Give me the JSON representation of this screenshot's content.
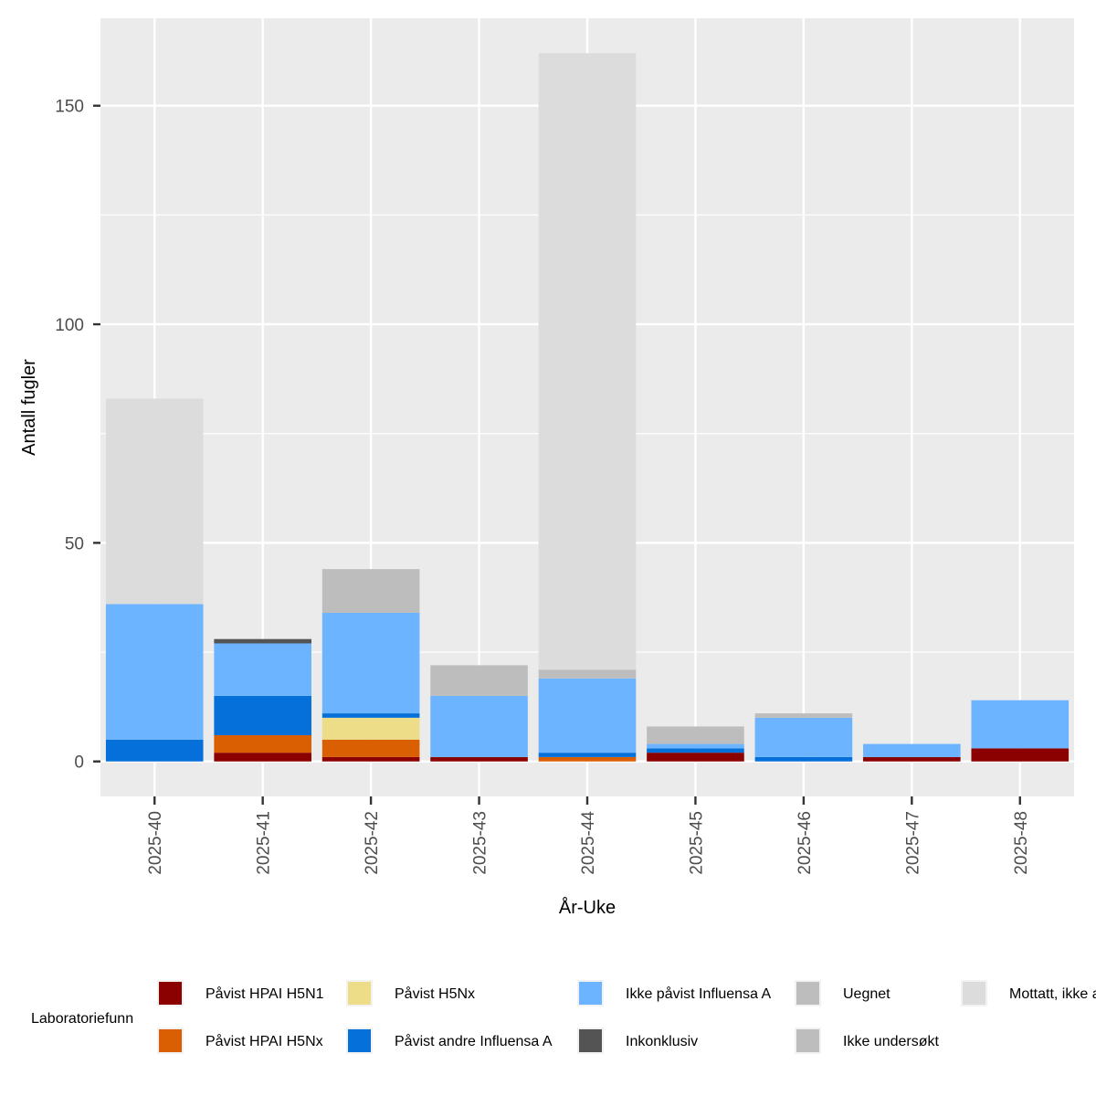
{
  "chart_data": {
    "type": "bar",
    "stacked": true,
    "title": "",
    "xlabel": "År-Uke",
    "ylabel": "Antall fugler",
    "ylim": [
      -8,
      170
    ],
    "yticks": [
      0,
      50,
      100,
      150
    ],
    "categories": [
      "2025-40",
      "2025-41",
      "2025-42",
      "2025-43",
      "2025-44",
      "2025-45",
      "2025-46",
      "2025-47",
      "2025-48"
    ],
    "legend_title": "Laboratoriefunn",
    "series": [
      {
        "name": "Påvist HPAI H5N1",
        "color": "#8b0000",
        "values": [
          0,
          2,
          1,
          1,
          0,
          2,
          0,
          1,
          3
        ]
      },
      {
        "name": "Påvist HPAI H5Nx",
        "color": "#d95f02",
        "values": [
          0,
          4,
          4,
          0,
          1,
          0,
          0,
          0,
          0
        ]
      },
      {
        "name": "Påvist H5Nx",
        "color": "#eedd88",
        "values": [
          0,
          0,
          5,
          0,
          0,
          0,
          0,
          0,
          0
        ]
      },
      {
        "name": "Påvist andre Influensa A",
        "color": "#0570d9",
        "values": [
          5,
          9,
          1,
          0,
          1,
          1,
          1,
          0,
          0
        ]
      },
      {
        "name": "Ikke påvist Influensa A",
        "color": "#6cb4ff",
        "values": [
          31,
          12,
          23,
          14,
          17,
          1,
          9,
          3,
          11
        ]
      },
      {
        "name": "Inkonklusiv",
        "color": "#545454",
        "values": [
          0,
          1,
          0,
          0,
          0,
          0,
          0,
          0,
          0
        ]
      },
      {
        "name": "Uegnet",
        "color": "#bdbdbd",
        "values": [
          0,
          0,
          10,
          7,
          2,
          4,
          1,
          0,
          0
        ]
      },
      {
        "name": "Ikke undersøkt",
        "color": "#bdbdbd",
        "values": [
          0,
          0,
          0,
          0,
          0,
          0,
          0,
          0,
          0
        ]
      },
      {
        "name": "Mottatt, ikke a",
        "color": "#dcdcdc",
        "values": [
          47,
          0,
          0,
          0,
          141,
          0,
          0,
          0,
          0
        ]
      }
    ]
  }
}
